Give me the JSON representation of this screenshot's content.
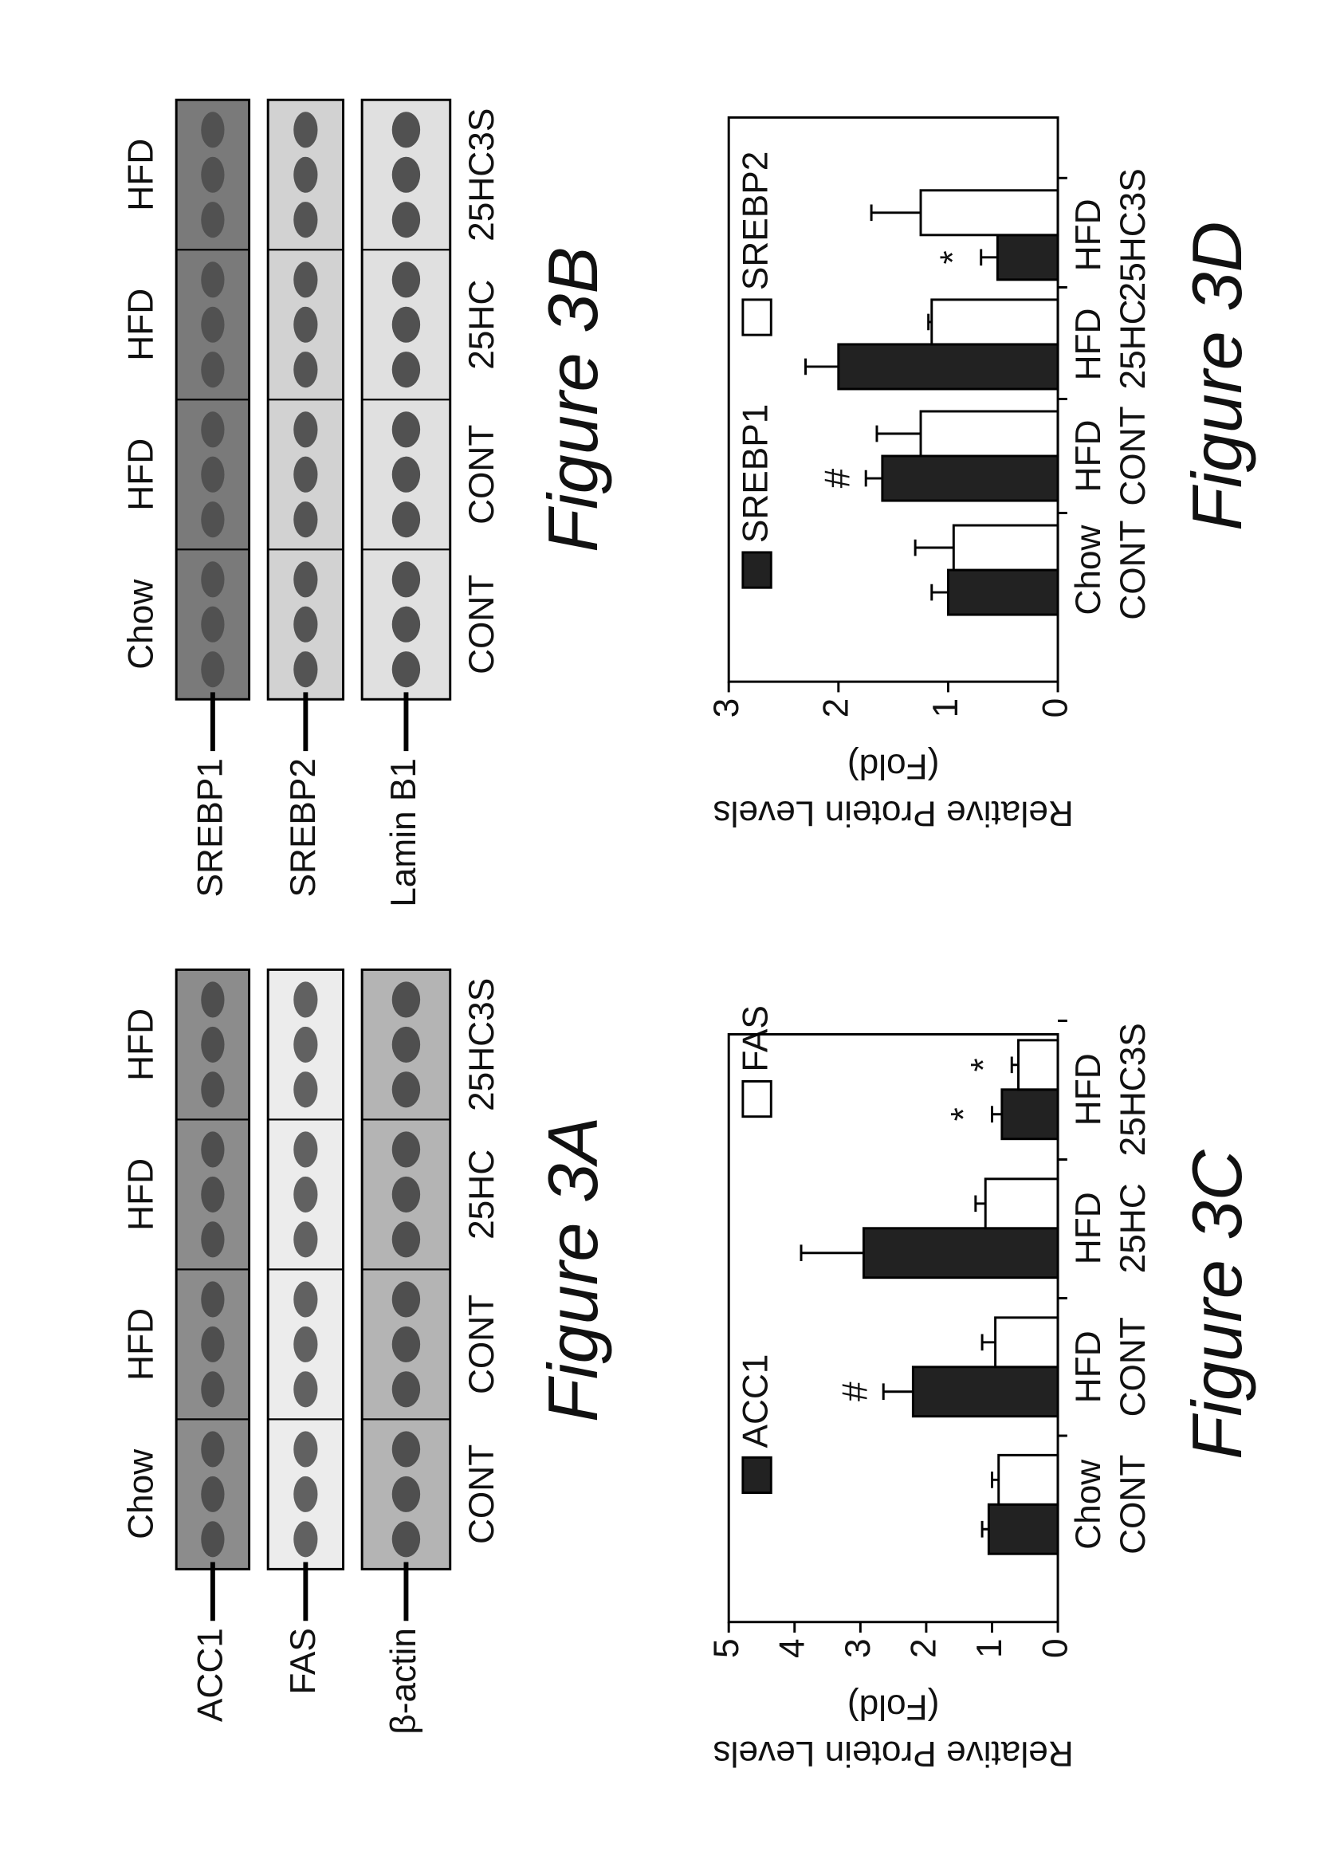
{
  "blots": [
    {
      "caption": "Figure 3A",
      "proteins": [
        "ACC1",
        "FAS",
        "β-actin"
      ],
      "lanes": [
        [
          "Chow",
          "CONT"
        ],
        [
          "HFD",
          "CONT"
        ],
        [
          "HFD",
          "25HC"
        ],
        [
          "HFD",
          "25HC3S"
        ]
      ]
    },
    {
      "caption": "Figure 3B",
      "proteins": [
        "SREBP1",
        "SREBP2",
        "Lamin B1"
      ],
      "lanes": [
        [
          "Chow",
          "CONT"
        ],
        [
          "HFD",
          "CONT"
        ],
        [
          "HFD",
          "25HC"
        ],
        [
          "HFD",
          "25HC3S"
        ]
      ]
    }
  ],
  "chart_data": [
    {
      "type": "bar",
      "caption": "Figure 3C",
      "y_label": [
        "Relative Protein Levels",
        "(Fold)"
      ],
      "categories": [
        [
          "Chow",
          "CONT"
        ],
        [
          "HFD",
          "CONT"
        ],
        [
          "HFD",
          "25HC"
        ],
        [
          "HFD",
          "25HC3S"
        ]
      ],
      "series": [
        {
          "name": "ACC1",
          "color": "#222222",
          "values": [
            1.05,
            2.2,
            2.95,
            0.85
          ],
          "errors": [
            0.1,
            0.45,
            0.95,
            0.15
          ]
        },
        {
          "name": "FAS",
          "color": "#ffffff",
          "values": [
            0.9,
            0.95,
            1.1,
            0.6
          ],
          "errors": [
            0.1,
            0.2,
            0.15,
            0.1
          ]
        }
      ],
      "annotations": [
        {
          "text": "#",
          "series": 0,
          "index": 1
        },
        {
          "text": "*",
          "series": 0,
          "index": 3
        },
        {
          "text": "*",
          "series": 1,
          "index": 3
        }
      ],
      "ylim": [
        0,
        5
      ],
      "yticks": [
        0,
        1,
        2,
        3,
        4,
        5
      ]
    },
    {
      "type": "bar",
      "caption": "Figure 3D",
      "y_label": [
        "Relative Protein Levels",
        "(Fold)"
      ],
      "categories": [
        [
          "Chow",
          "CONT"
        ],
        [
          "HFD",
          "CONT"
        ],
        [
          "HFD",
          "25HC"
        ],
        [
          "HFD",
          "25HC3S"
        ]
      ],
      "series": [
        {
          "name": "SREBP1",
          "color": "#222222",
          "values": [
            1.0,
            1.6,
            2.0,
            0.55
          ],
          "errors": [
            0.15,
            0.15,
            0.3,
            0.15
          ]
        },
        {
          "name": "SREBP2",
          "color": "#ffffff",
          "values": [
            0.95,
            1.25,
            1.15,
            1.25
          ],
          "errors": [
            0.35,
            0.4,
            0.03,
            0.45
          ]
        }
      ],
      "annotations": [
        {
          "text": "#",
          "series": 0,
          "index": 1
        },
        {
          "text": "*",
          "series": 0,
          "index": 3
        }
      ],
      "ylim": [
        0,
        3
      ],
      "yticks": [
        0,
        1,
        2,
        3
      ]
    }
  ]
}
